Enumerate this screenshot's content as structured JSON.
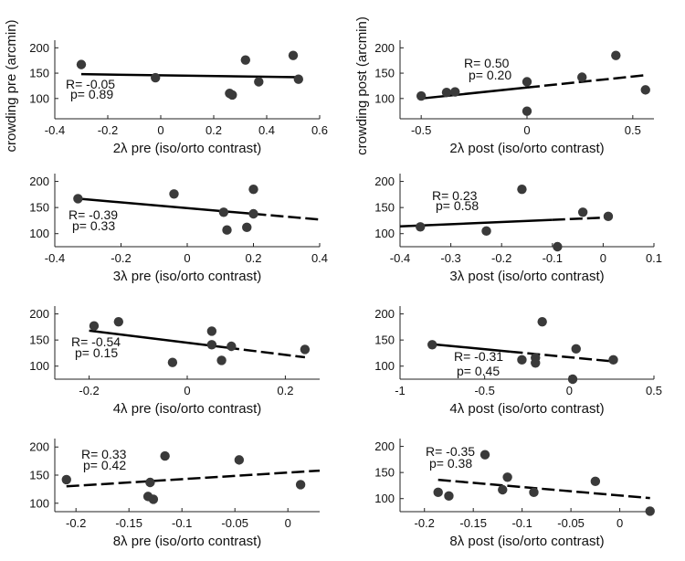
{
  "chart_data": [
    {
      "type": "scatter",
      "id": "p1",
      "column": "pre",
      "xlabel": "2λ pre (iso/orto contrast)",
      "ylabel": "crowding pre (arcmin)",
      "xlim": [
        -0.4,
        0.6
      ],
      "ylim": [
        60,
        215
      ],
      "xticks": [
        -0.4,
        -0.2,
        0,
        0.2,
        0.4,
        0.6
      ],
      "xtick_labels": [
        "-0.4",
        "-0.2",
        "0",
        "0.2",
        "0.4",
        "0.6"
      ],
      "yticks": [
        100,
        150,
        200
      ],
      "ytick_labels": [
        "100",
        "150",
        "200"
      ],
      "points": [
        {
          "x": -0.3,
          "y": 167
        },
        {
          "x": -0.02,
          "y": 141
        },
        {
          "x": 0.26,
          "y": 110
        },
        {
          "x": 0.27,
          "y": 107
        },
        {
          "x": 0.32,
          "y": 176
        },
        {
          "x": 0.37,
          "y": 133
        },
        {
          "x": 0.5,
          "y": 185
        },
        {
          "x": 0.52,
          "y": 138
        }
      ],
      "fit": {
        "x0": -0.3,
        "y0": 148,
        "x1": 0.52,
        "y1": 142,
        "split_x": 0.52
      },
      "r_text": "R= -0.05",
      "p_text": "p= 0.89"
    },
    {
      "type": "scatter",
      "id": "p2",
      "column": "post",
      "xlabel": "2λ post (iso/orto contrast)",
      "ylabel": "crowding post (arcmin)",
      "xlim": [
        -0.6,
        0.6
      ],
      "ylim": [
        60,
        215
      ],
      "xticks": [
        -0.5,
        0,
        0.5
      ],
      "xtick_labels": [
        "-0.5",
        "0",
        "0.5"
      ],
      "yticks": [
        100,
        150,
        200
      ],
      "ytick_labels": [
        "100",
        "150",
        "200"
      ],
      "points": [
        {
          "x": -0.5,
          "y": 105
        },
        {
          "x": -0.38,
          "y": 112
        },
        {
          "x": -0.34,
          "y": 113
        },
        {
          "x": 0.0,
          "y": 133
        },
        {
          "x": 0.0,
          "y": 75
        },
        {
          "x": 0.26,
          "y": 142
        },
        {
          "x": 0.42,
          "y": 185
        },
        {
          "x": 0.56,
          "y": 117
        }
      ],
      "fit": {
        "x0": -0.5,
        "y0": 100,
        "x1": 0.56,
        "y1": 146,
        "split_x": 0.0
      },
      "r_text": "R= 0.50",
      "p_text": "p= 0.20"
    },
    {
      "type": "scatter",
      "id": "p3",
      "column": "pre",
      "xlabel": "3λ pre (iso/orto contrast)",
      "ylabel": "",
      "xlim": [
        -0.4,
        0.4
      ],
      "ylim": [
        75,
        215
      ],
      "xticks": [
        -0.4,
        -0.2,
        0,
        0.2,
        0.4
      ],
      "xtick_labels": [
        "-0.4",
        "-0.2",
        "0",
        "0.2",
        "0.4"
      ],
      "yticks": [
        100,
        150,
        200
      ],
      "ytick_labels": [
        "100",
        "150",
        "200"
      ],
      "points": [
        {
          "x": -0.33,
          "y": 167
        },
        {
          "x": -0.04,
          "y": 176
        },
        {
          "x": 0.11,
          "y": 141
        },
        {
          "x": 0.12,
          "y": 107
        },
        {
          "x": 0.18,
          "y": 112
        },
        {
          "x": 0.2,
          "y": 185
        },
        {
          "x": 0.2,
          "y": 138
        }
      ],
      "fit": {
        "x0": -0.33,
        "y0": 167,
        "x1": 0.4,
        "y1": 127,
        "split_x": 0.2
      },
      "r_text": "R= -0.39",
      "p_text": "p= 0.33"
    },
    {
      "type": "scatter",
      "id": "p4",
      "column": "post",
      "xlabel": "3λ post (iso/orto contrast)",
      "ylabel": "",
      "xlim": [
        -0.4,
        0.1
      ],
      "ylim": [
        75,
        215
      ],
      "xticks": [
        -0.4,
        -0.3,
        -0.2,
        -0.1,
        0,
        0.1
      ],
      "xtick_labels": [
        "-0.4",
        "-0.3",
        "-0.2",
        "-0.1",
        "0",
        "0.1"
      ],
      "yticks": [
        100,
        150,
        200
      ],
      "ytick_labels": [
        "100",
        "150",
        "200"
      ],
      "points": [
        {
          "x": -0.36,
          "y": 113
        },
        {
          "x": -0.23,
          "y": 105
        },
        {
          "x": -0.16,
          "y": 185
        },
        {
          "x": -0.09,
          "y": 75
        },
        {
          "x": -0.04,
          "y": 141
        },
        {
          "x": 0.01,
          "y": 133
        }
      ],
      "fit": {
        "x0": -0.4,
        "y0": 114,
        "x1": 0.01,
        "y1": 131,
        "split_x": -0.1
      },
      "r_text": "R= 0.23",
      "p_text": "p= 0.58"
    },
    {
      "type": "scatter",
      "id": "p5",
      "column": "pre",
      "xlabel": "4λ pre (iso/orto contrast)",
      "ylabel": "",
      "xlim": [
        -0.27,
        0.27
      ],
      "ylim": [
        75,
        215
      ],
      "xticks": [
        -0.2,
        0,
        0.2
      ],
      "xtick_labels": [
        "-0.2",
        "0",
        "0.2"
      ],
      "yticks": [
        100,
        150,
        200
      ],
      "ytick_labels": [
        "100",
        "150",
        "200"
      ],
      "points": [
        {
          "x": -0.19,
          "y": 177
        },
        {
          "x": -0.14,
          "y": 185
        },
        {
          "x": -0.03,
          "y": 107
        },
        {
          "x": 0.05,
          "y": 167
        },
        {
          "x": 0.05,
          "y": 141
        },
        {
          "x": 0.07,
          "y": 111
        },
        {
          "x": 0.09,
          "y": 138
        },
        {
          "x": 0.24,
          "y": 132
        }
      ],
      "fit": {
        "x0": -0.2,
        "y0": 168,
        "x1": 0.24,
        "y1": 117,
        "split_x": 0.08
      },
      "r_text": "R= -0.54",
      "p_text": "p= 0.15"
    },
    {
      "type": "scatter",
      "id": "p6",
      "column": "post",
      "xlabel": "4λ post (iso/orto contrast)",
      "ylabel": "",
      "xlim": [
        -1,
        0.5
      ],
      "ylim": [
        75,
        215
      ],
      "xticks": [
        -1,
        -0.5,
        0,
        0.5
      ],
      "xtick_labels": [
        "-1",
        "-0.5",
        "0",
        "0.5"
      ],
      "yticks": [
        100,
        150,
        200
      ],
      "ytick_labels": [
        "100",
        "150",
        "200"
      ],
      "points": [
        {
          "x": -0.81,
          "y": 141
        },
        {
          "x": -0.28,
          "y": 112
        },
        {
          "x": -0.2,
          "y": 106
        },
        {
          "x": -0.2,
          "y": 116
        },
        {
          "x": -0.16,
          "y": 185
        },
        {
          "x": 0.02,
          "y": 75
        },
        {
          "x": 0.04,
          "y": 133
        },
        {
          "x": 0.26,
          "y": 112
        }
      ],
      "fit": {
        "x0": -0.81,
        "y0": 142,
        "x1": 0.26,
        "y1": 109,
        "split_x": -0.35
      },
      "r_text": "R= -0.31",
      "p_text": "p= 0.45"
    },
    {
      "type": "scatter",
      "id": "p7",
      "column": "pre",
      "xlabel": "8λ pre (iso/orto contrast)",
      "ylabel": "",
      "xlim": [
        -0.22,
        0.03
      ],
      "ylim": [
        85,
        215
      ],
      "xticks": [
        -0.2,
        -0.15,
        -0.1,
        -0.05,
        0
      ],
      "xtick_labels": [
        "-0.2",
        "-0.15",
        "-0.1",
        "-0.05",
        "0"
      ],
      "yticks": [
        100,
        150,
        200
      ],
      "ytick_labels": [
        "100",
        "150",
        "200"
      ],
      "points": [
        {
          "x": -0.209,
          "y": 142
        },
        {
          "x": -0.132,
          "y": 112
        },
        {
          "x": -0.13,
          "y": 137
        },
        {
          "x": -0.127,
          "y": 107
        },
        {
          "x": -0.116,
          "y": 184
        },
        {
          "x": -0.046,
          "y": 177
        },
        {
          "x": 0.012,
          "y": 133
        }
      ],
      "fit": {
        "x0": -0.209,
        "y0": 130,
        "x1": 0.03,
        "y1": 158,
        "split_x": -0.21
      },
      "r_text": "R= 0.33",
      "p_text": "p= 0.42"
    },
    {
      "type": "scatter",
      "id": "p8",
      "column": "post",
      "xlabel": "8λ post (iso/orto contrast)",
      "ylabel": "",
      "xlim": [
        -0.225,
        0.035
      ],
      "ylim": [
        75,
        215
      ],
      "xticks": [
        -0.2,
        -0.15,
        -0.1,
        -0.05,
        0
      ],
      "xtick_labels": [
        "-0.2",
        "-0.15",
        "-0.1",
        "-0.05",
        "0"
      ],
      "yticks": [
        100,
        150,
        200
      ],
      "ytick_labels": [
        "100",
        "150",
        "200"
      ],
      "points": [
        {
          "x": -0.186,
          "y": 112
        },
        {
          "x": -0.175,
          "y": 105
        },
        {
          "x": -0.138,
          "y": 184
        },
        {
          "x": -0.115,
          "y": 141
        },
        {
          "x": -0.12,
          "y": 117
        },
        {
          "x": -0.088,
          "y": 112
        },
        {
          "x": -0.025,
          "y": 133
        },
        {
          "x": 0.031,
          "y": 76
        }
      ],
      "fit": {
        "x0": -0.186,
        "y0": 136,
        "x1": 0.031,
        "y1": 101,
        "split_x": -0.19
      },
      "r_text": "R= -0.35",
      "p_text": "p= 0.38"
    }
  ]
}
